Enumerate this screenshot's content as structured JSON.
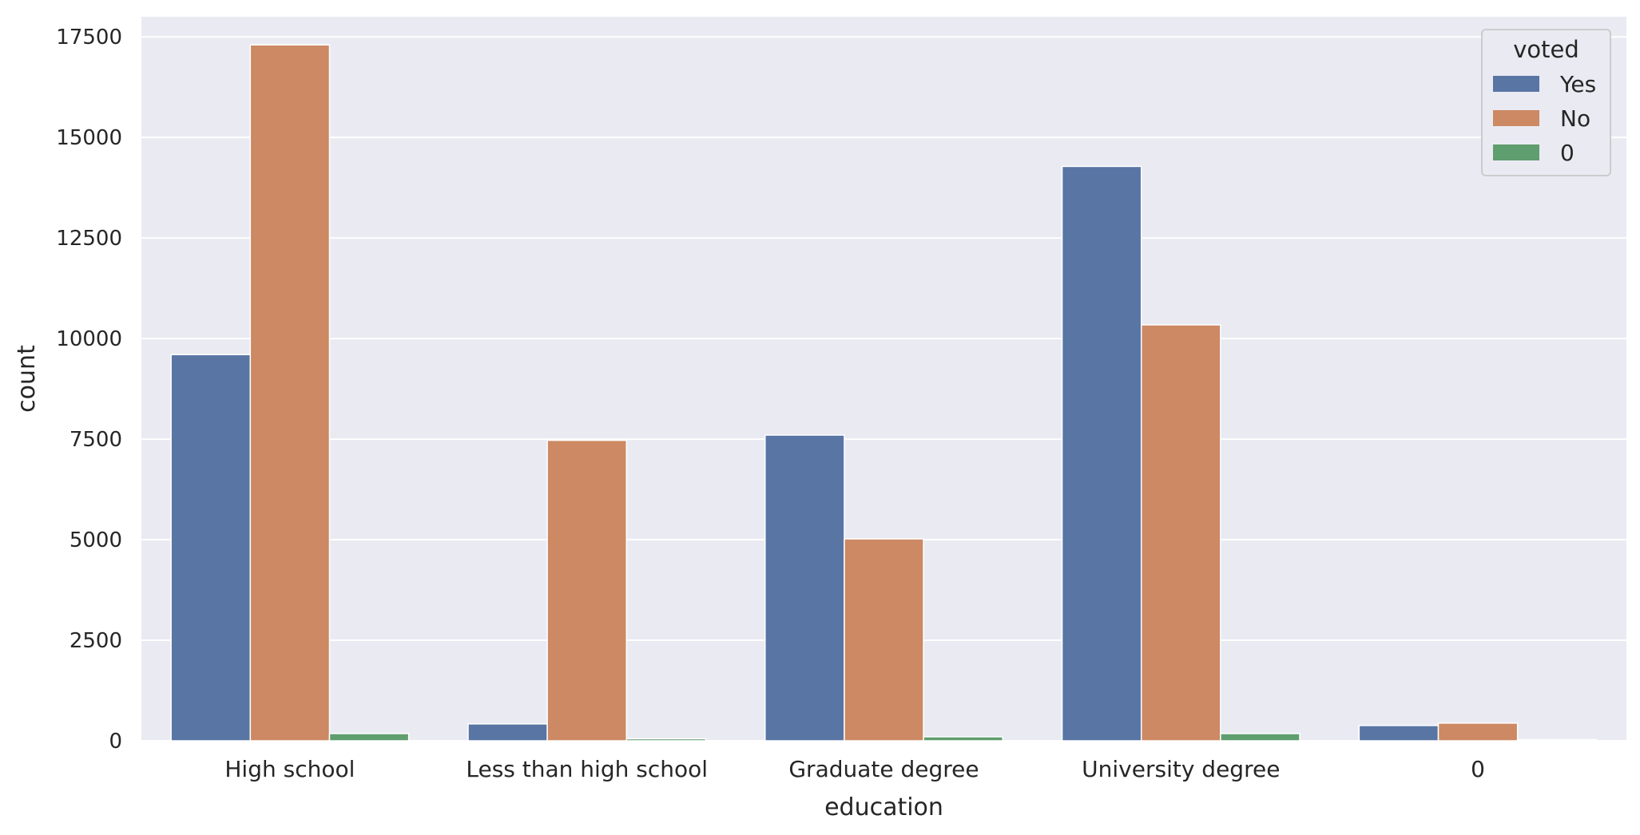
{
  "chart_data": {
    "type": "bar",
    "title": "",
    "xlabel": "education",
    "ylabel": "count",
    "categories": [
      "High school",
      "Less than high school",
      "Graduate degree",
      "University degree",
      "0"
    ],
    "series": [
      {
        "name": "Yes",
        "color": "#5875a4",
        "values": [
          9600,
          420,
          7600,
          14280,
          380
        ]
      },
      {
        "name": "No",
        "color": "#cc8963",
        "values": [
          17300,
          7470,
          5020,
          10340,
          440
        ]
      },
      {
        "name": "0",
        "color": "#5f9e6e",
        "values": [
          180,
          50,
          100,
          180,
          30
        ]
      }
    ],
    "ylim": [
      0,
      18000
    ],
    "yticks": [
      0,
      2500,
      5000,
      7500,
      10000,
      12500,
      15000,
      17500
    ],
    "grid": true,
    "legend": {
      "title": "voted",
      "position": "top-right"
    },
    "style": {
      "plot_background": "#eaeaf2",
      "grid_color": "#ffffff"
    }
  }
}
